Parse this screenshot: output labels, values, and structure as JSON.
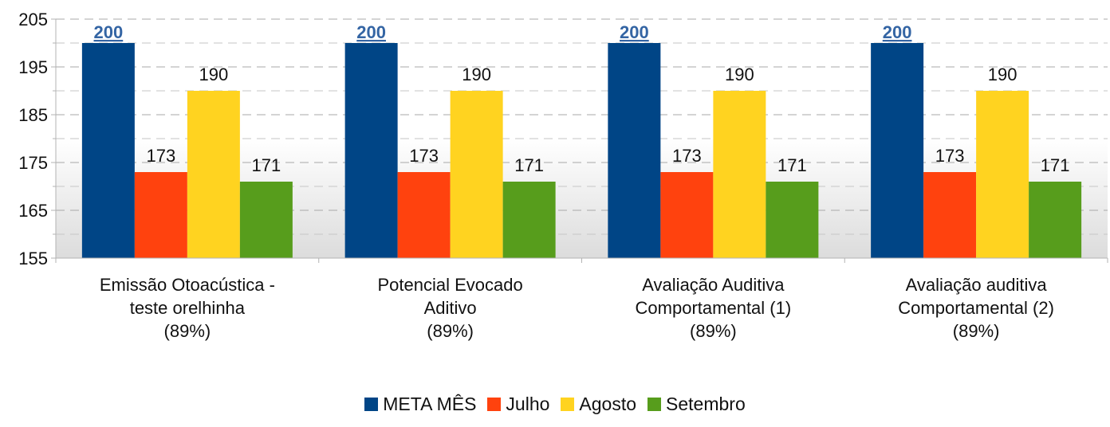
{
  "chart_data": {
    "type": "bar",
    "title": "",
    "xlabel": "",
    "ylabel": "",
    "ylim": [
      155,
      205
    ],
    "yticks": [
      155,
      165,
      175,
      185,
      195,
      205
    ],
    "grid": true,
    "legend_position": "bottom",
    "categories": [
      [
        "Emissão Otoacústica -",
        "teste orelhinha",
        "(89%)"
      ],
      [
        "Potencial Evocado",
        "Aditivo",
        "(89%)"
      ],
      [
        "Avaliação Auditiva",
        "Comportamental (1)",
        "(89%)"
      ],
      [
        "Avaliação auditiva",
        "Comportamental (2)",
        "(89%)"
      ]
    ],
    "series": [
      {
        "name": "META MÊS",
        "color": "#004586",
        "values": [
          200,
          200,
          200,
          200
        ],
        "label_style": "bold-underline-blue"
      },
      {
        "name": "Julho",
        "color": "#ff420e",
        "values": [
          173,
          173,
          173,
          173
        ]
      },
      {
        "name": "Agosto",
        "color": "#ffd320",
        "values": [
          190,
          190,
          190,
          190
        ]
      },
      {
        "name": "Setembro",
        "color": "#579d1c",
        "values": [
          171,
          171,
          171,
          171
        ]
      }
    ]
  }
}
